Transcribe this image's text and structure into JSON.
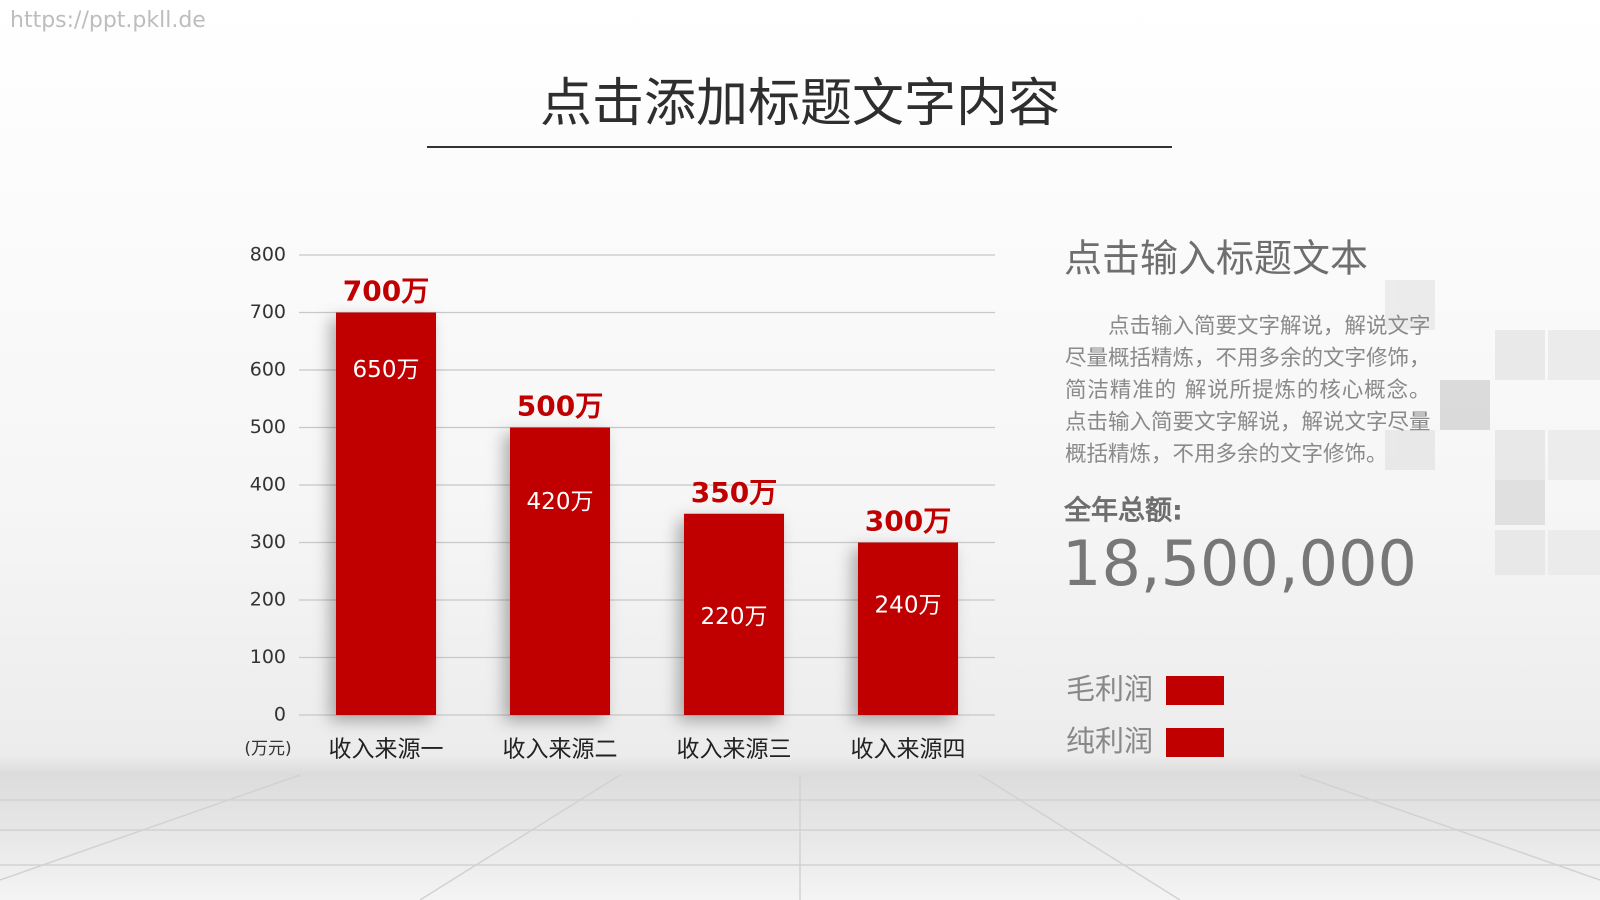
{
  "watermark": "https://ppt.pkll.de",
  "title": "点击添加标题文字内容",
  "side": {
    "heading": "点击输入标题文本",
    "body": "点击输入简要文字解说，解说文字尽量概括精炼，不用多余的文字修饰，简洁精准的 解说所提炼的核心概念。点击输入简要文字解说，解说文字尽量概括精炼，不用多余的文字修饰。",
    "total_label": "全年总额:",
    "total_value": "18,500,000"
  },
  "chart_data": {
    "type": "bar",
    "y_unit_label": "(万元)",
    "categories": [
      "收入来源一",
      "收入来源二",
      "收入来源三",
      "收入来源四"
    ],
    "series": [
      {
        "name": "毛利润",
        "color": "#c00000",
        "values": [
          700,
          500,
          350,
          300
        ],
        "value_labels": [
          "700万",
          "500万",
          "350万",
          "300万"
        ]
      },
      {
        "name": "纯利润",
        "color": "#c00000",
        "values": [
          650,
          420,
          220,
          240
        ],
        "value_labels": [
          "650万",
          "420万",
          "220万",
          "240万"
        ]
      }
    ],
    "ylim": [
      0,
      800
    ],
    "yticks": [
      0,
      100,
      200,
      300,
      400,
      500,
      600,
      700,
      800
    ],
    "grid": true
  }
}
